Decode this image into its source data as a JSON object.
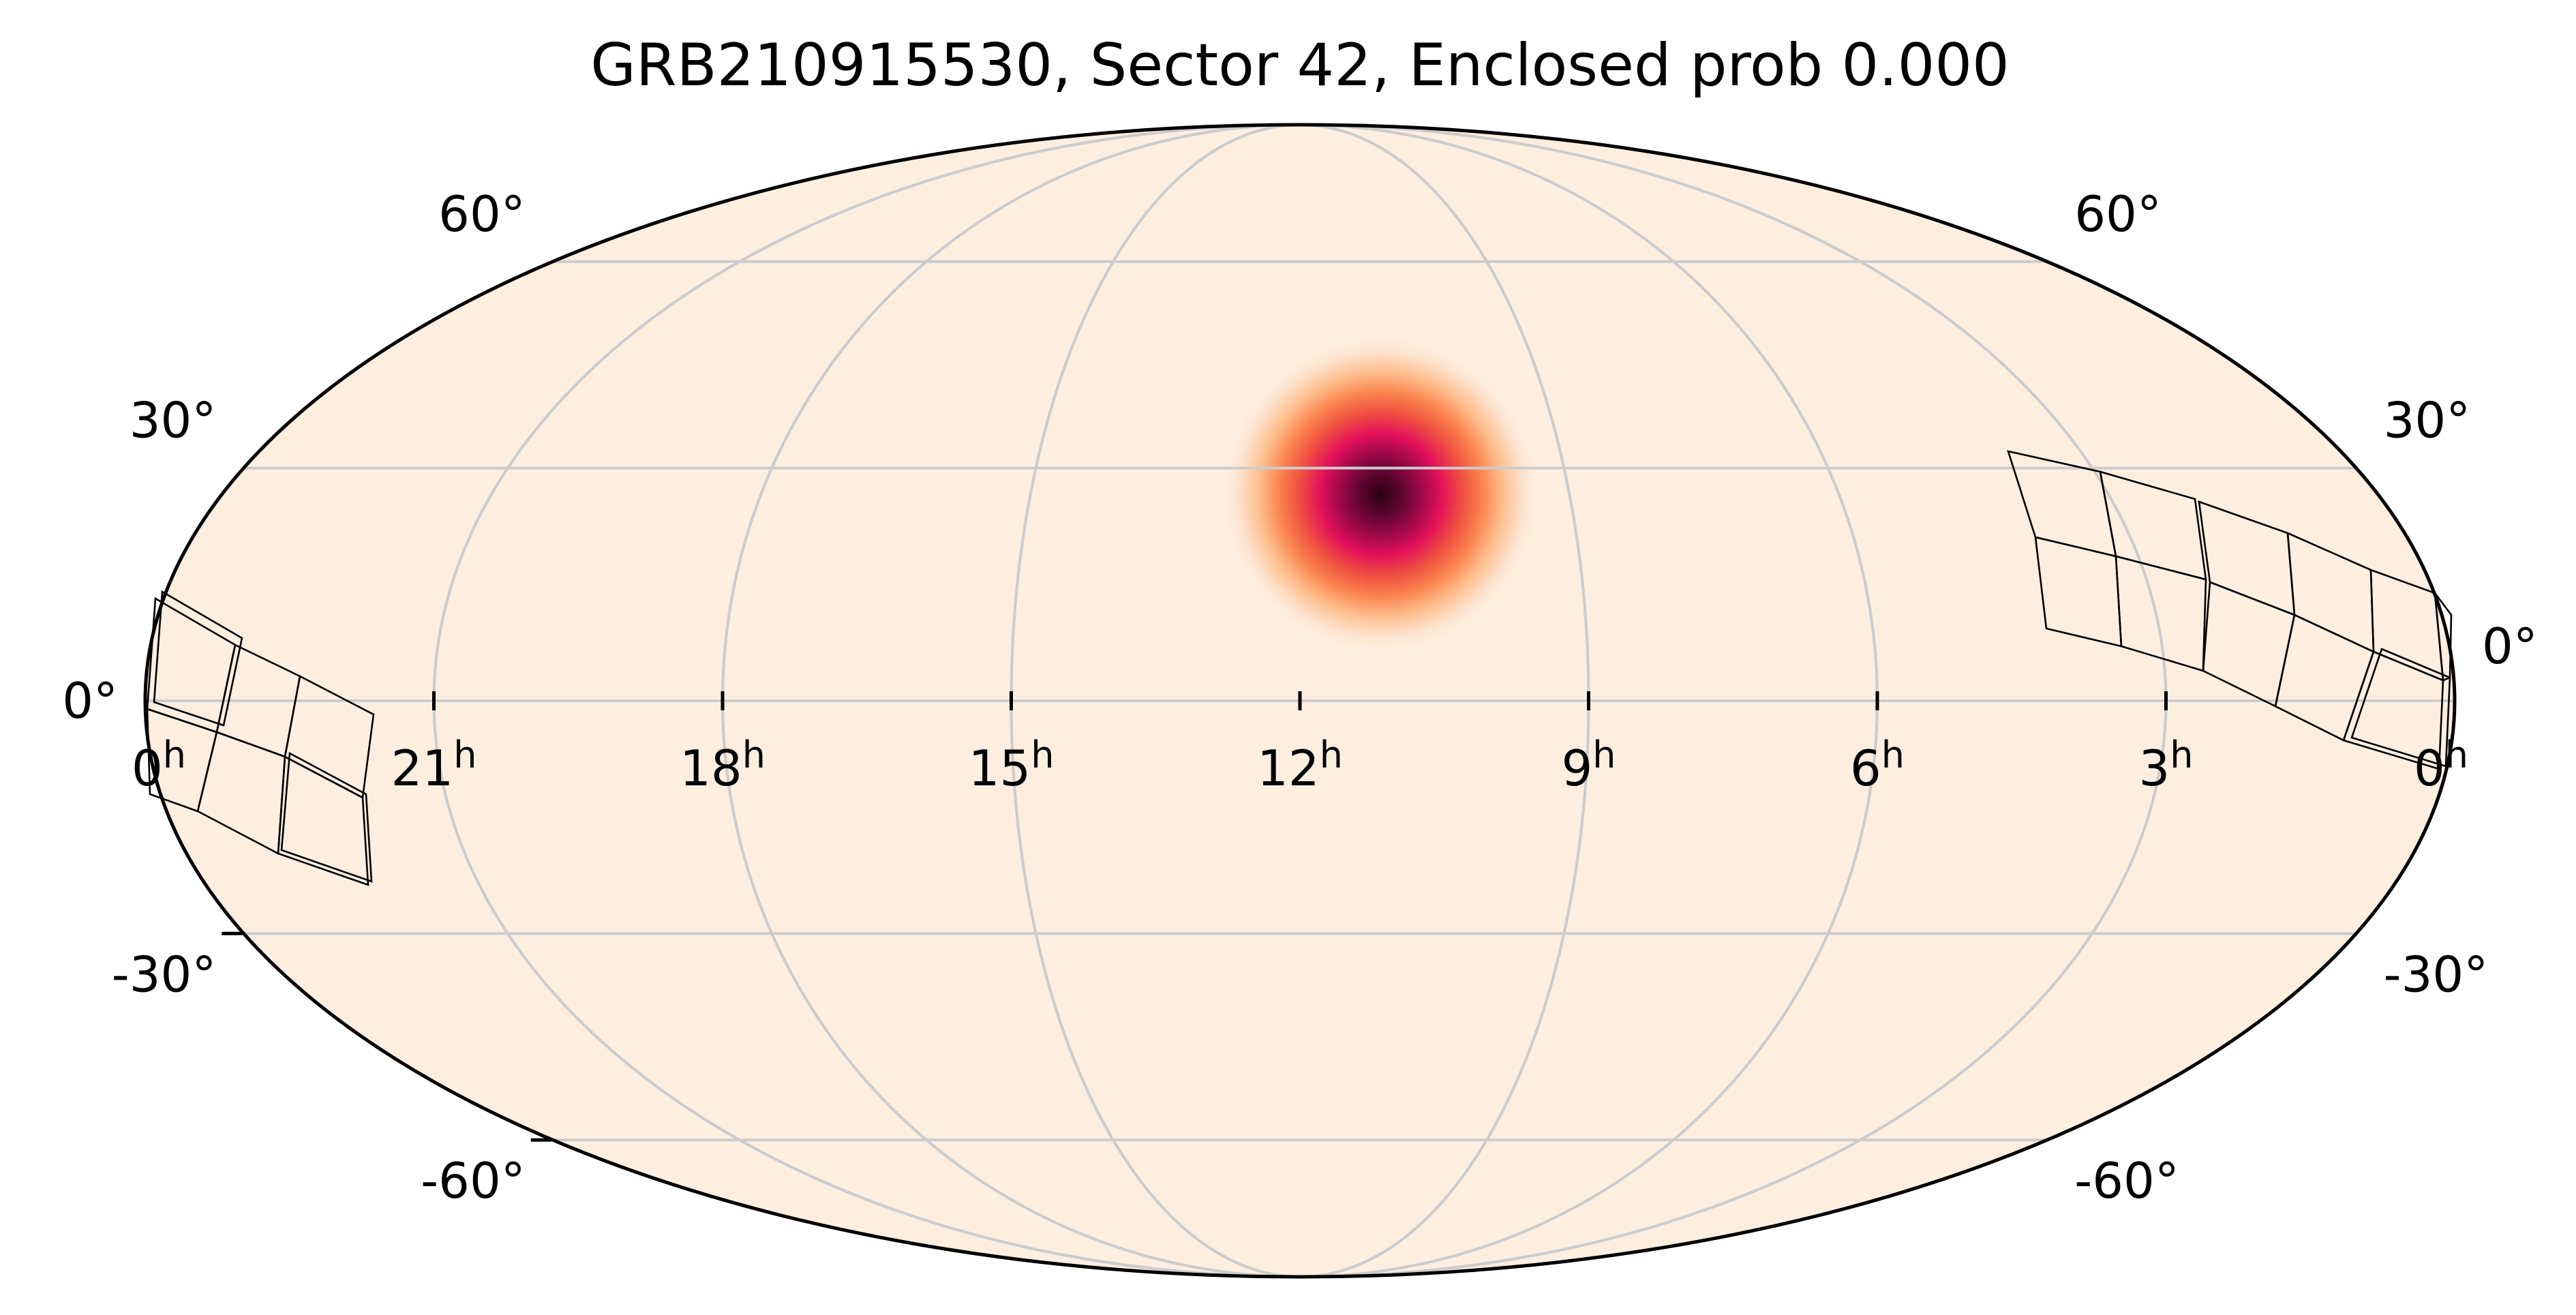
{
  "title": "GRB210915530, Sector 42, Enclosed prob 0.000",
  "projection": "mollweide",
  "ra_axis": "reversed",
  "grid": true,
  "background_color": "#fdeee0",
  "grid_color": "#cccccc",
  "colormap": [
    "#fdeee0",
    "#fda36b",
    "#f05340",
    "#e2115a",
    "#a0084a",
    "#2a0210"
  ],
  "ra_ticks": [
    {
      "hours": 0,
      "label": "0",
      "sup": "h"
    },
    {
      "hours": 21,
      "label": "21",
      "sup": "h"
    },
    {
      "hours": 18,
      "label": "18",
      "sup": "h"
    },
    {
      "hours": 15,
      "label": "15",
      "sup": "h"
    },
    {
      "hours": 12,
      "label": "12",
      "sup": "h"
    },
    {
      "hours": 9,
      "label": "9",
      "sup": "h"
    },
    {
      "hours": 6,
      "label": "6",
      "sup": "h"
    },
    {
      "hours": 3,
      "label": "3",
      "sup": "h"
    },
    {
      "hours": 0,
      "label": "0",
      "sup": "h"
    }
  ],
  "dec_ticks": [
    {
      "deg": 60,
      "label": "60°"
    },
    {
      "deg": 30,
      "label": "30°"
    },
    {
      "deg": 0,
      "label": "0°"
    },
    {
      "deg": -30,
      "label": "-30°"
    },
    {
      "deg": -60,
      "label": "-60°"
    }
  ],
  "probability_peak": {
    "ra_hours": 11.1,
    "dec_deg": 26.5
  }
}
